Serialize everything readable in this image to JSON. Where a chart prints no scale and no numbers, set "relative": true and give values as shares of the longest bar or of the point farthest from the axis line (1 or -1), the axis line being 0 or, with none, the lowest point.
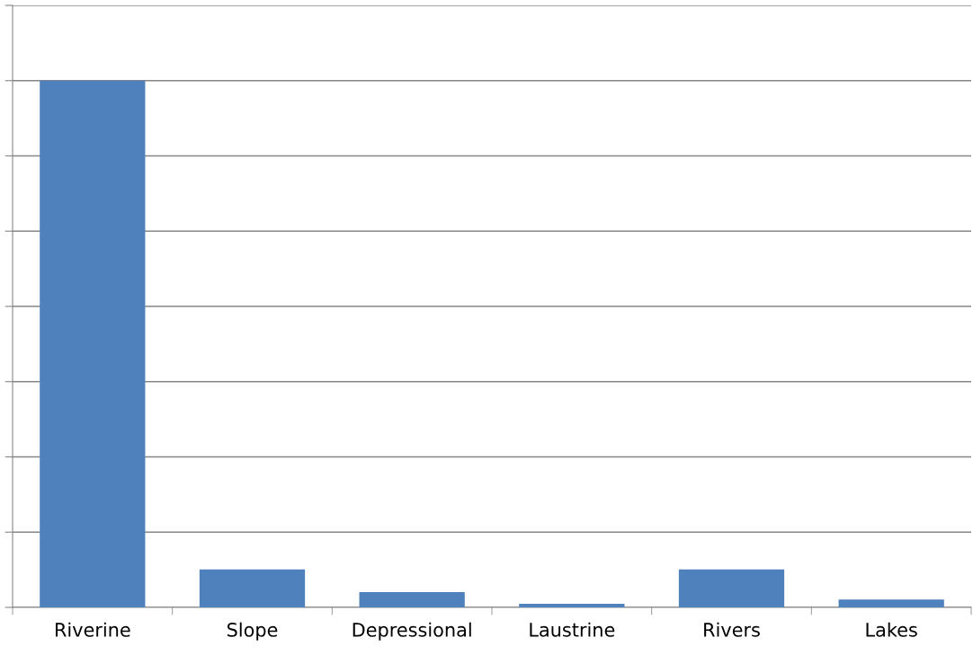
{
  "chart_data": {
    "type": "bar",
    "relative": true,
    "grid": "y",
    "categories": [
      "Riverine",
      "Slope",
      "Depressional",
      "Laustrine",
      "Rivers",
      "Lakes"
    ],
    "values": [
      1,
      0.072,
      0.029,
      0.007,
      0.072,
      0.015
    ],
    "color": "#4f81bd"
  }
}
